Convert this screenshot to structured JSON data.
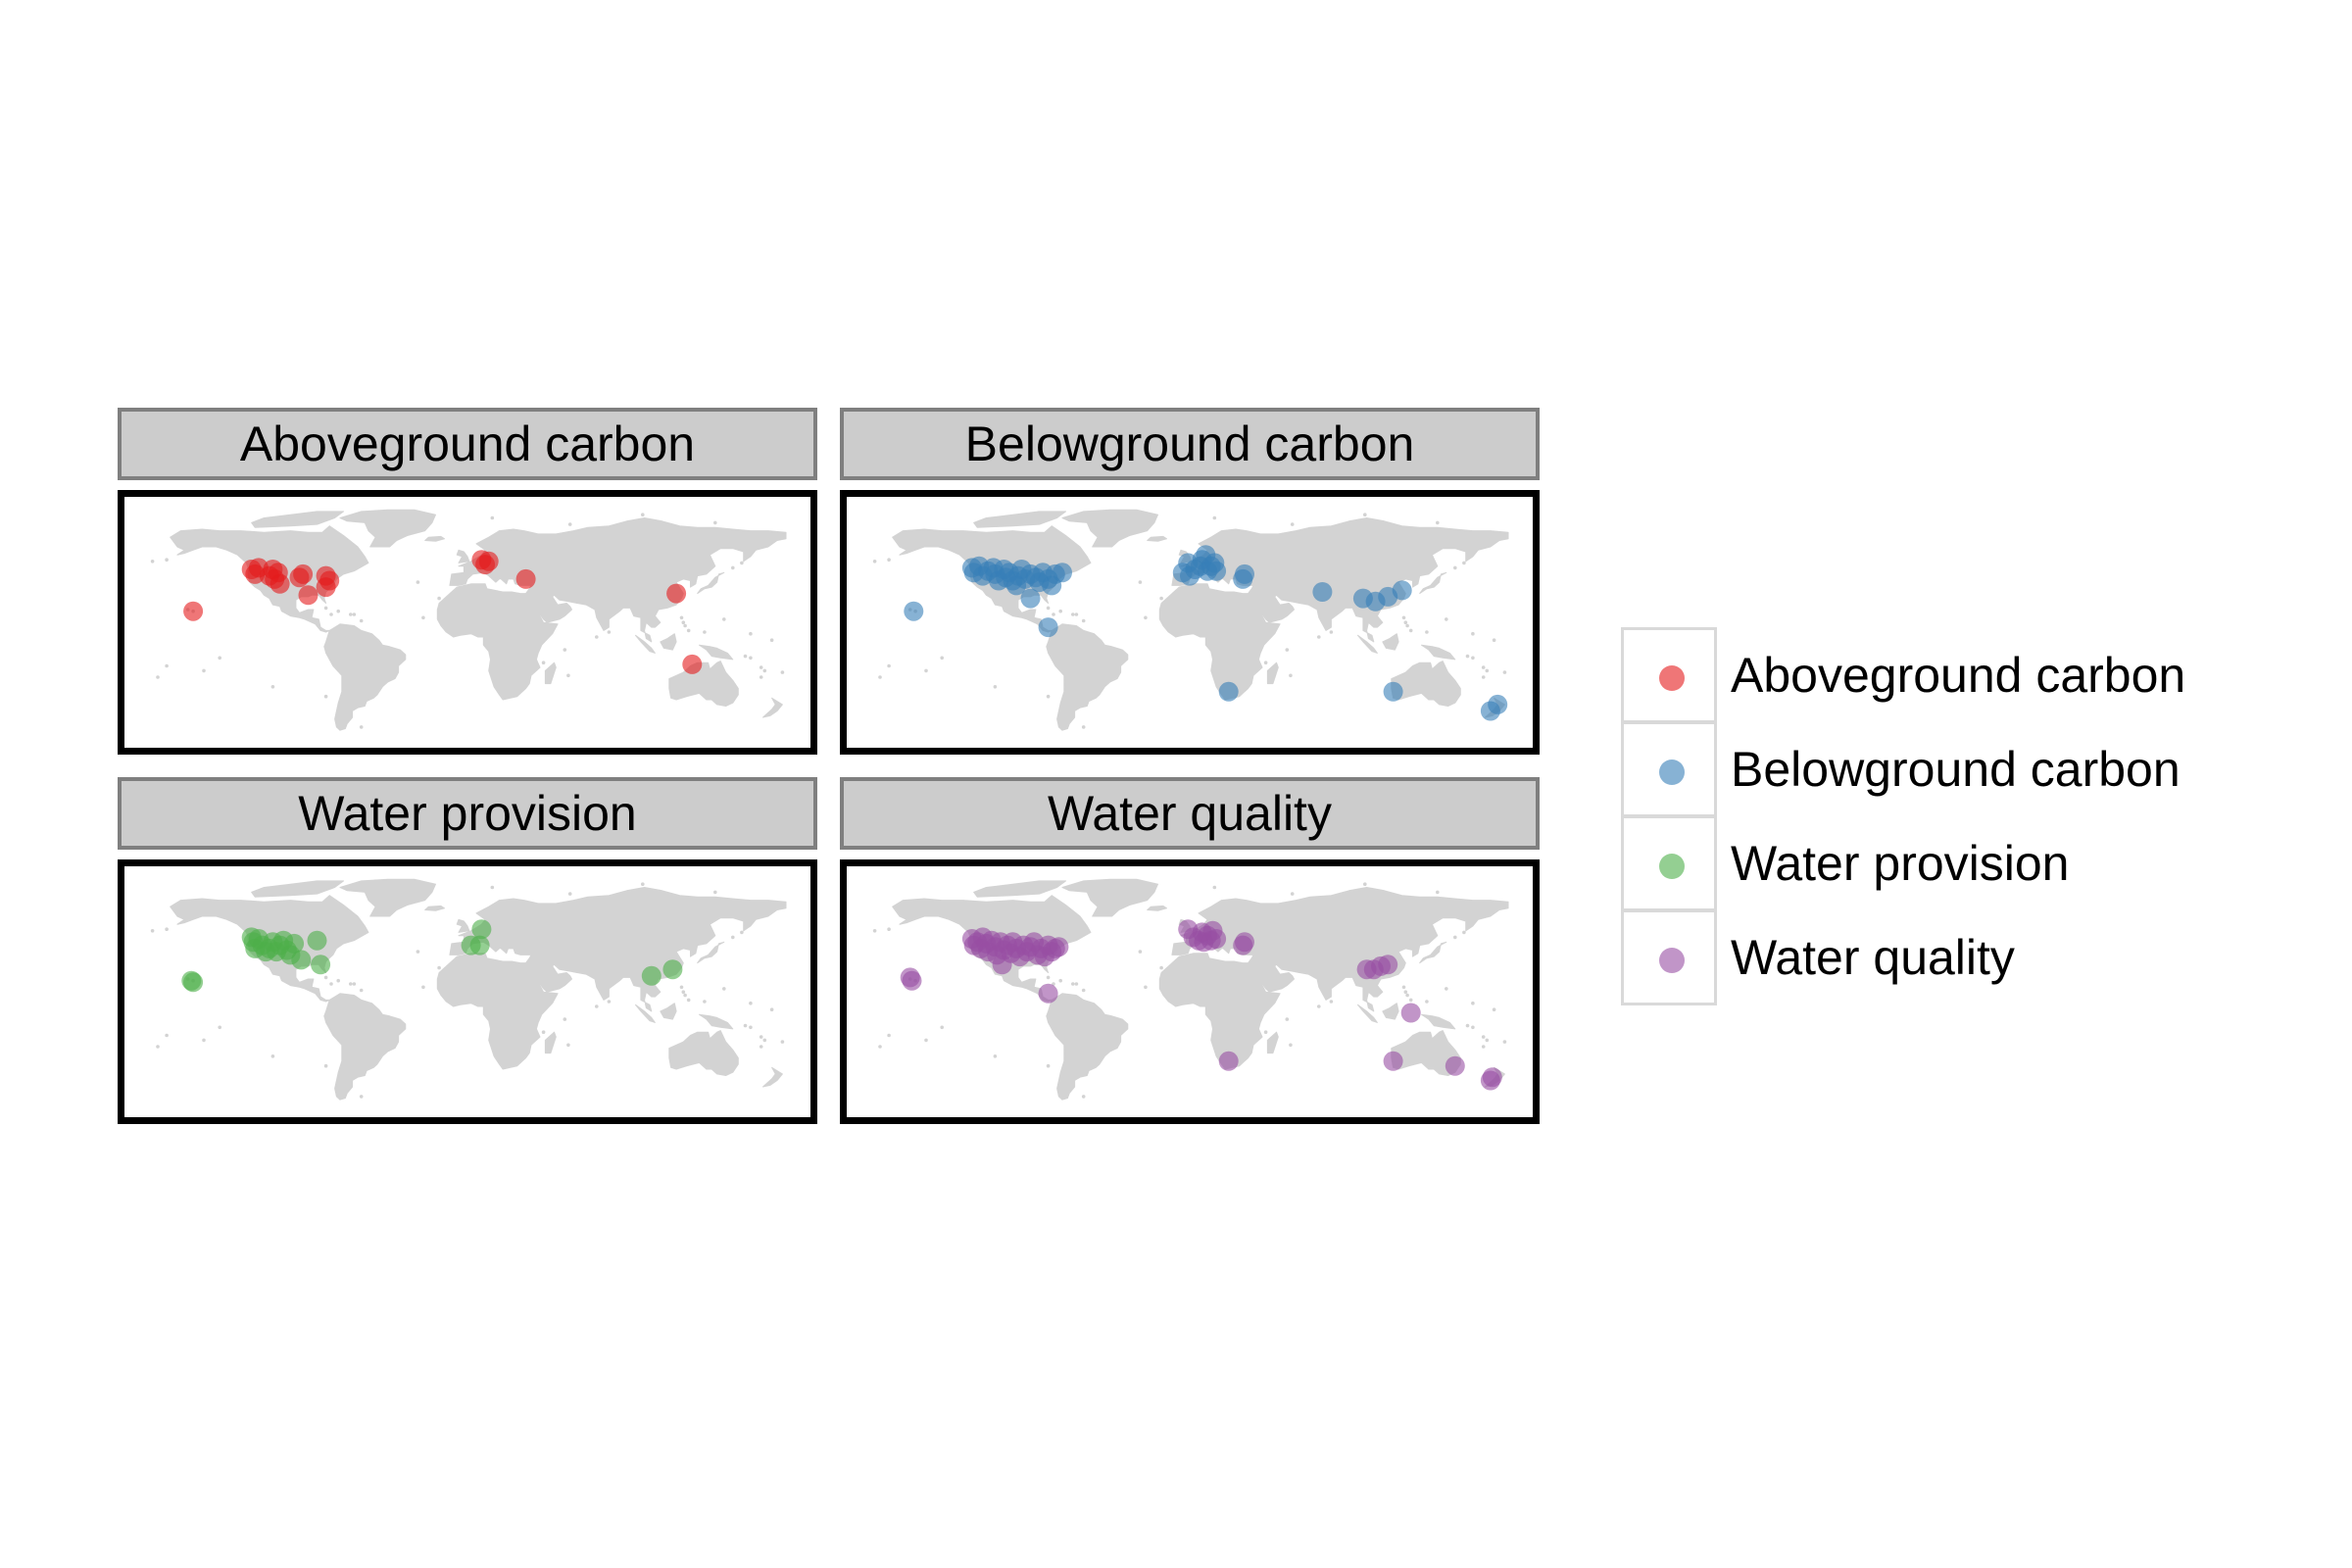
{
  "figure": {
    "facets": [
      {
        "id": "aboveground",
        "title": "Aboveground carbon",
        "color": "#e41a1c"
      },
      {
        "id": "belowground",
        "title": "Belowground carbon",
        "color": "#377eb8"
      },
      {
        "id": "provision",
        "title": "Water provision",
        "color": "#4daf4a"
      },
      {
        "id": "quality",
        "title": "Water quality",
        "color": "#984ea3"
      }
    ],
    "land_color": "#d3d3d3",
    "legend": {
      "items": [
        {
          "label": "Aboveground carbon",
          "color": "#e41a1c"
        },
        {
          "label": "Belowground carbon",
          "color": "#377eb8"
        },
        {
          "label": "Water provision",
          "color": "#4daf4a"
        },
        {
          "label": "Water quality",
          "color": "#984ea3"
        }
      ]
    }
  },
  "chart_data": {
    "type": "scatter",
    "projection": "equirectangular",
    "xlim": [
      -180,
      180
    ],
    "ylim": [
      -60,
      85
    ],
    "series": [
      {
        "name": "Aboveground carbon",
        "color": "#e41a1c",
        "points": [
          [
            -155,
            20
          ],
          [
            -122,
            46
          ],
          [
            -120,
            43
          ],
          [
            -118,
            47
          ],
          [
            -112,
            42
          ],
          [
            -110,
            46
          ],
          [
            -109,
            40
          ],
          [
            -107,
            44
          ],
          [
            -106,
            37
          ],
          [
            -95,
            41
          ],
          [
            -93,
            43
          ],
          [
            -90,
            30
          ],
          [
            -80,
            42
          ],
          [
            -78,
            39
          ],
          [
            -80,
            35
          ],
          [
            8,
            52
          ],
          [
            10,
            49
          ],
          [
            12,
            51
          ],
          [
            33,
            40
          ],
          [
            118,
            31
          ],
          [
            127,
            -13
          ]
        ]
      },
      {
        "name": "Belowground carbon",
        "color": "#377eb8",
        "points": [
          [
            -156,
            20
          ],
          [
            -123,
            47
          ],
          [
            -122,
            44
          ],
          [
            -119,
            48
          ],
          [
            -117,
            42
          ],
          [
            -114,
            45
          ],
          [
            -111,
            47
          ],
          [
            -110,
            43
          ],
          [
            -108,
            39
          ],
          [
            -105,
            46
          ],
          [
            -104,
            41
          ],
          [
            -102,
            44
          ],
          [
            -100,
            39
          ],
          [
            -98,
            36
          ],
          [
            -97,
            42
          ],
          [
            -95,
            46
          ],
          [
            -93,
            40
          ],
          [
            -90,
            43
          ],
          [
            -87,
            41
          ],
          [
            -85,
            38
          ],
          [
            -83,
            44
          ],
          [
            -80,
            40
          ],
          [
            -78,
            36
          ],
          [
            -76,
            43
          ],
          [
            -72,
            44
          ],
          [
            -90,
            28
          ],
          [
            -80,
            10
          ],
          [
            -4,
            44
          ],
          [
            0,
            42
          ],
          [
            3,
            46
          ],
          [
            6,
            48
          ],
          [
            7,
            52
          ],
          [
            9,
            55
          ],
          [
            10,
            45
          ],
          [
            12,
            48
          ],
          [
            14,
            50
          ],
          [
            15,
            45
          ],
          [
            -1,
            50
          ],
          [
            30,
            40
          ],
          [
            31,
            43
          ],
          [
            75,
            32
          ],
          [
            98,
            28
          ],
          [
            105,
            26
          ],
          [
            112,
            29
          ],
          [
            120,
            33
          ],
          [
            22,
            -30
          ],
          [
            115,
            -30
          ],
          [
            170,
            -42
          ],
          [
            174,
            -38
          ]
        ]
      },
      {
        "name": "Water provision",
        "color": "#4daf4a",
        "points": [
          [
            -156,
            20
          ],
          [
            -155,
            19
          ],
          [
            -122,
            47
          ],
          [
            -121,
            44
          ],
          [
            -120,
            40
          ],
          [
            -118,
            46
          ],
          [
            -116,
            42
          ],
          [
            -114,
            38
          ],
          [
            -112,
            40
          ],
          [
            -110,
            44
          ],
          [
            -108,
            38
          ],
          [
            -106,
            42
          ],
          [
            -104,
            45
          ],
          [
            -102,
            39
          ],
          [
            -100,
            36
          ],
          [
            -98,
            43
          ],
          [
            -94,
            33
          ],
          [
            -83,
            30
          ],
          [
            -85,
            45
          ],
          [
            2,
            42
          ],
          [
            7,
            42
          ],
          [
            8,
            52
          ],
          [
            104,
            23
          ],
          [
            116,
            27
          ]
        ]
      },
      {
        "name": "Water quality",
        "color": "#984ea3",
        "points": [
          [
            -158,
            22
          ],
          [
            -157,
            20
          ],
          [
            -123,
            46
          ],
          [
            -122,
            42
          ],
          [
            -120,
            44
          ],
          [
            -118,
            40
          ],
          [
            -117,
            47
          ],
          [
            -115,
            43
          ],
          [
            -114,
            38
          ],
          [
            -112,
            45
          ],
          [
            -110,
            41
          ],
          [
            -109,
            36
          ],
          [
            -107,
            44
          ],
          [
            -105,
            39
          ],
          [
            -103,
            42
          ],
          [
            -101,
            37
          ],
          [
            -100,
            44
          ],
          [
            -98,
            40
          ],
          [
            -96,
            35
          ],
          [
            -94,
            42
          ],
          [
            -92,
            38
          ],
          [
            -90,
            41
          ],
          [
            -88,
            44
          ],
          [
            -86,
            36
          ],
          [
            -84,
            40
          ],
          [
            -82,
            35
          ],
          [
            -80,
            42
          ],
          [
            -78,
            38
          ],
          [
            -76,
            40
          ],
          [
            -74,
            41
          ],
          [
            -106,
            30
          ],
          [
            -80,
            12
          ],
          [
            -1,
            52
          ],
          [
            2,
            47
          ],
          [
            5,
            45
          ],
          [
            7,
            50
          ],
          [
            8,
            44
          ],
          [
            10,
            48
          ],
          [
            12,
            45
          ],
          [
            13,
            51
          ],
          [
            15,
            46
          ],
          [
            30,
            42
          ],
          [
            31,
            44
          ],
          [
            100,
            27
          ],
          [
            104,
            27
          ],
          [
            108,
            29
          ],
          [
            112,
            30
          ],
          [
            125,
            0
          ],
          [
            22,
            -30
          ],
          [
            115,
            -30
          ],
          [
            150,
            -33
          ],
          [
            170,
            -42
          ],
          [
            171,
            -40
          ]
        ]
      }
    ]
  }
}
